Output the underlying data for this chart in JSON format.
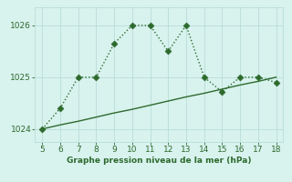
{
  "x": [
    5,
    6,
    7,
    8,
    9,
    10,
    11,
    12,
    13,
    14,
    15,
    16,
    17,
    18
  ],
  "y_main": [
    1024.0,
    1024.4,
    1025.0,
    1025.0,
    1025.65,
    1026.0,
    1026.0,
    1025.5,
    1026.0,
    1025.0,
    1024.72,
    1025.0,
    1025.0,
    1024.9
  ],
  "y_trend": [
    1024.0,
    1024.08,
    1024.15,
    1024.23,
    1024.31,
    1024.38,
    1024.46,
    1024.54,
    1024.62,
    1024.69,
    1024.77,
    1024.85,
    1024.92,
    1025.0
  ],
  "line_color": "#2d6a2d",
  "bg_color": "#d8f2ee",
  "grid_color": "#b8ddd8",
  "xlabel": "Graphe pression niveau de la mer (hPa)",
  "xlabel_color": "#2d6a2d",
  "tick_color": "#2d6a2d",
  "ylim": [
    1023.75,
    1026.35
  ],
  "yticks": [
    1024,
    1025,
    1026
  ],
  "xlim": [
    4.6,
    18.4
  ],
  "xticks": [
    5,
    6,
    7,
    8,
    9,
    10,
    11,
    12,
    13,
    14,
    15,
    16,
    17,
    18
  ],
  "marker_size": 3.5,
  "line_width": 1.0
}
